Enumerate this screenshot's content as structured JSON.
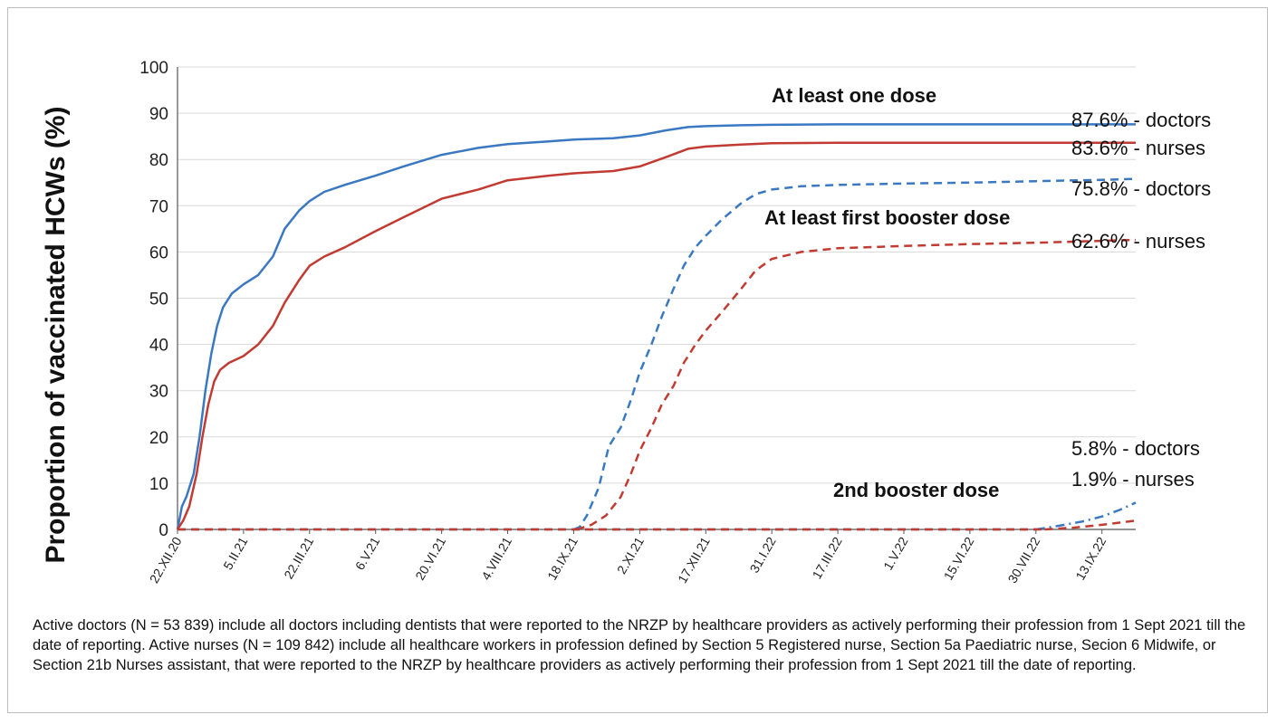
{
  "chart_data": {
    "type": "line",
    "ylabel": "Proportion of vaccinated HCWs (%)",
    "ylim": [
      0,
      100
    ],
    "yticks": [
      0,
      10,
      20,
      30,
      40,
      50,
      60,
      70,
      80,
      90,
      100
    ],
    "xlim": [
      "2020-12-22",
      "2022-10-06"
    ],
    "xtick_labels": [
      "22.XII.20",
      "5.II.21",
      "22.III.21",
      "6.V.21",
      "20.VI.21",
      "4.VIII.21",
      "18.IX.21",
      "2.XI.21",
      "17.XII.21",
      "31.I.22",
      "17.III.22",
      "1.V.22",
      "15.VI.22",
      "30.VII.22",
      "13.IX.22"
    ],
    "xtick_dates": [
      "2020-12-22",
      "2021-02-05",
      "2021-03-22",
      "2021-05-06",
      "2021-06-20",
      "2021-08-04",
      "2021-09-18",
      "2021-11-02",
      "2021-12-17",
      "2022-01-31",
      "2022-03-17",
      "2022-05-01",
      "2022-06-15",
      "2022-07-30",
      "2022-09-13"
    ],
    "grid": "horizontal",
    "series": [
      {
        "group": "At least one dose",
        "profession": "doctors",
        "color": "#3a79c2",
        "dash": "solid",
        "x": [
          "2020-12-22",
          "2020-12-25",
          "2020-12-28",
          "2021-01-02",
          "2021-01-06",
          "2021-01-10",
          "2021-01-14",
          "2021-01-18",
          "2021-01-22",
          "2021-01-28",
          "2021-02-05",
          "2021-02-15",
          "2021-02-25",
          "2021-03-05",
          "2021-03-15",
          "2021-03-22",
          "2021-04-01",
          "2021-04-15",
          "2021-05-06",
          "2021-05-25",
          "2021-06-20",
          "2021-07-15",
          "2021-08-04",
          "2021-09-01",
          "2021-09-18",
          "2021-10-15",
          "2021-11-02",
          "2021-11-20",
          "2021-12-05",
          "2021-12-17",
          "2022-01-10",
          "2022-01-31",
          "2022-03-17",
          "2022-05-01",
          "2022-06-15",
          "2022-07-30",
          "2022-09-13",
          "2022-10-06"
        ],
        "y": [
          0,
          5,
          7,
          12,
          20,
          30,
          38,
          44,
          48,
          51,
          53,
          55,
          59,
          65,
          69,
          71,
          73,
          74.5,
          76.5,
          78.5,
          81,
          82.5,
          83.3,
          83.9,
          84.3,
          84.6,
          85.2,
          86.3,
          87,
          87.2,
          87.4,
          87.5,
          87.6,
          87.6,
          87.6,
          87.6,
          87.6,
          87.6
        ]
      },
      {
        "group": "At least one dose",
        "profession": "nurses",
        "color": "#c23b32",
        "dash": "solid",
        "x": [
          "2020-12-22",
          "2020-12-26",
          "2020-12-30",
          "2021-01-04",
          "2021-01-08",
          "2021-01-12",
          "2021-01-16",
          "2021-01-20",
          "2021-01-26",
          "2021-02-05",
          "2021-02-15",
          "2021-02-25",
          "2021-03-05",
          "2021-03-15",
          "2021-03-22",
          "2021-04-01",
          "2021-04-15",
          "2021-05-06",
          "2021-05-25",
          "2021-06-20",
          "2021-07-15",
          "2021-08-04",
          "2021-09-01",
          "2021-09-18",
          "2021-10-15",
          "2021-11-02",
          "2021-11-20",
          "2021-12-05",
          "2021-12-17",
          "2022-01-10",
          "2022-01-31",
          "2022-03-17",
          "2022-05-01",
          "2022-06-15",
          "2022-07-30",
          "2022-09-13",
          "2022-10-06"
        ],
        "y": [
          0,
          2,
          5,
          12,
          20,
          27,
          32,
          34.5,
          36,
          37.5,
          40,
          44,
          49,
          54,
          57,
          59,
          61,
          64.5,
          67.5,
          71.5,
          73.5,
          75.5,
          76.5,
          77,
          77.5,
          78.5,
          80.5,
          82.3,
          82.8,
          83.2,
          83.5,
          83.6,
          83.6,
          83.6,
          83.6,
          83.6,
          83.6
        ]
      },
      {
        "group": "At least first booster dose",
        "profession": "doctors",
        "color": "#3a79c2",
        "dash": "dashed",
        "x": [
          "2021-09-18",
          "2021-09-22",
          "2021-09-27",
          "2021-10-05",
          "2021-10-12",
          "2021-10-20",
          "2021-10-27",
          "2021-11-02",
          "2021-11-10",
          "2021-11-17",
          "2021-11-25",
          "2021-12-02",
          "2021-12-10",
          "2021-12-17",
          "2021-12-28",
          "2022-01-10",
          "2022-01-20",
          "2022-01-31",
          "2022-02-20",
          "2022-03-17",
          "2022-05-01",
          "2022-06-15",
          "2022-07-30",
          "2022-09-13",
          "2022-10-06"
        ],
        "y": [
          0,
          0.5,
          3,
          9,
          18,
          22,
          28,
          34,
          40,
          46,
          52,
          57,
          61,
          63.5,
          67,
          70.5,
          72.5,
          73.5,
          74.2,
          74.5,
          74.8,
          75,
          75.3,
          75.6,
          75.8
        ]
      },
      {
        "group": "At least first booster dose",
        "profession": "nurses",
        "color": "#c23b32",
        "dash": "dashed",
        "x": [
          "2021-09-20",
          "2021-09-30",
          "2021-10-10",
          "2021-10-20",
          "2021-10-27",
          "2021-11-02",
          "2021-11-10",
          "2021-11-17",
          "2021-11-25",
          "2021-12-02",
          "2021-12-10",
          "2021-12-17",
          "2021-12-28",
          "2022-01-10",
          "2022-01-20",
          "2022-01-31",
          "2022-02-20",
          "2022-03-17",
          "2022-05-01",
          "2022-06-15",
          "2022-07-30",
          "2022-09-13",
          "2022-10-06"
        ],
        "y": [
          0,
          1,
          3,
          7,
          12,
          17,
          22,
          27,
          31,
          36,
          40,
          43,
          47,
          52,
          56,
          58.5,
          60,
          60.8,
          61.3,
          61.7,
          62,
          62.4,
          62.6
        ]
      },
      {
        "group": "2nd booster dose",
        "profession": "doctors",
        "color": "#3a79c2",
        "dash": "dashdot",
        "x": [
          "2022-07-30",
          "2022-08-15",
          "2022-09-01",
          "2022-09-13",
          "2022-09-25",
          "2022-10-06"
        ],
        "y": [
          0,
          0.8,
          1.8,
          2.8,
          4.2,
          5.8
        ]
      },
      {
        "group": "2nd booster dose",
        "profession": "nurses",
        "color": "#c23b32",
        "dash": "dashed",
        "x": [
          "2022-08-05",
          "2022-08-25",
          "2022-09-13",
          "2022-10-06"
        ],
        "y": [
          0,
          0.4,
          1.0,
          1.9
        ]
      },
      {
        "group": "baseline",
        "profession": "doctors",
        "color": "#3a79c2",
        "dash": "dashed",
        "x": [
          "2020-12-22",
          "2022-07-30"
        ],
        "y": [
          0,
          0
        ]
      },
      {
        "group": "baseline",
        "profession": "nurses",
        "color": "#c23b32",
        "dash": "dashed",
        "x": [
          "2020-12-22",
          "2022-08-05"
        ],
        "y": [
          0,
          0
        ]
      }
    ],
    "annotations": [
      {
        "text": "At least one dose",
        "bold": true
      },
      {
        "text": "At least first booster dose",
        "bold": true
      },
      {
        "text": "2nd booster dose",
        "bold": true
      },
      {
        "text": "87.6% - doctors",
        "y": 87.6
      },
      {
        "text": "83.6% - nurses",
        "y": 83.6
      },
      {
        "text": "75.8% - doctors",
        "y": 75.8
      },
      {
        "text": "62.6% - nurses",
        "y": 62.6
      },
      {
        "text": "5.8% - doctors",
        "y": 5.8
      },
      {
        "text": "1.9% - nurses",
        "y": 1.9
      }
    ]
  },
  "caption": "Active doctors (N = 53 839) include all doctors including dentists that were reported to the NRZP by healthcare providers as actively performing their profession from 1 Sept 2021 till the date of reporting. Active nurses (N = 109 842) include all healthcare workers in profession defined by Section 5 Registered nurse, Section 5a Paediatric nurse, Secion 6 Midwife, or Section 21b Nurses assistant, that were reported to the NRZP by healthcare providers as actively performing their profession from 1 Sept 2021 till the date of reporting."
}
